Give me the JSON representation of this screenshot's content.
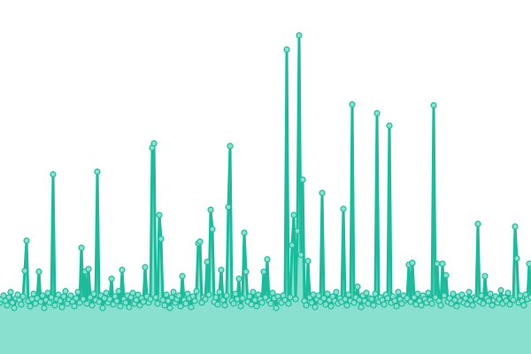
{
  "chart_data": {
    "type": "area",
    "title": "",
    "xlabel": "",
    "ylabel": "",
    "axes_visible": false,
    "grid": false,
    "legend": "none",
    "ylim": [
      0,
      400
    ],
    "colors": {
      "line": "#1abc9c",
      "fill": "#8ae0cf",
      "marker_fill": "#8ae0cf",
      "marker_stroke": "#1abc9c"
    },
    "values": [
      58,
      62,
      66,
      60,
      55,
      64,
      70,
      58,
      52,
      63,
      67,
      61,
      56,
      65,
      94,
      128,
      60,
      54,
      62,
      68,
      57,
      63,
      93,
      59,
      66,
      52,
      61,
      69,
      58,
      64,
      203,
      55,
      62,
      67,
      60,
      53,
      65,
      71,
      57,
      62,
      66,
      59,
      54,
      63,
      70,
      58,
      120,
      62,
      93,
      57,
      96,
      64,
      55,
      68,
      61,
      206,
      59,
      66,
      52,
      63,
      69,
      58,
      62,
      85,
      56,
      65,
      60,
      71,
      54,
      95,
      62,
      58,
      66,
      53,
      64,
      69,
      57,
      61,
      67,
      55,
      63,
      59,
      98,
      65,
      58,
      62,
      233,
      238,
      64,
      57,
      157,
      130,
      61,
      55,
      67,
      60,
      52,
      64,
      70,
      58,
      62,
      66,
      54,
      88,
      61,
      57,
      68,
      63,
      53,
      65,
      60,
      71,
      125,
      127,
      58,
      64,
      62,
      104,
      67,
      163,
      141,
      59,
      64,
      56,
      70,
      95,
      61,
      55,
      66,
      166,
      235,
      60,
      57,
      68,
      62,
      85,
      54,
      63,
      137,
      93,
      59,
      65,
      56,
      70,
      61,
      54,
      67,
      62,
      58,
      93,
      64,
      107,
      60,
      57,
      69,
      63,
      52,
      65,
      60,
      58,
      66,
      61,
      344,
      57,
      64,
      123,
      157,
      62,
      139,
      360,
      112,
      197,
      60,
      55,
      105,
      64,
      58,
      67,
      53,
      62,
      66,
      59,
      182,
      63,
      56,
      68,
      61,
      54,
      65,
      60,
      70,
      57,
      63,
      59,
      164,
      62,
      55,
      67,
      60,
      282,
      58,
      64,
      76,
      61,
      53,
      66,
      60,
      69,
      57,
      63,
      62,
      55,
      68,
      272,
      59,
      64,
      61,
      56,
      67,
      63,
      258,
      58,
      65,
      60,
      54,
      70,
      62,
      57,
      66,
      61,
      63,
      101,
      59,
      103,
      64,
      56,
      68,
      60,
      55,
      66,
      62,
      58,
      69,
      61,
      57,
      281,
      64,
      102,
      60,
      55,
      102,
      66,
      89,
      59,
      63,
      57,
      68,
      61,
      54,
      65,
      60,
      67,
      58,
      63,
      56,
      70,
      61,
      55,
      64,
      62,
      147,
      59,
      66,
      57,
      88,
      63,
      60,
      68,
      55,
      61,
      65,
      58,
      62,
      72,
      57,
      64,
      60,
      69,
      56,
      63,
      61,
      144,
      108,
      58,
      66,
      60,
      55,
      67,
      62,
      102,
      64
    ]
  }
}
